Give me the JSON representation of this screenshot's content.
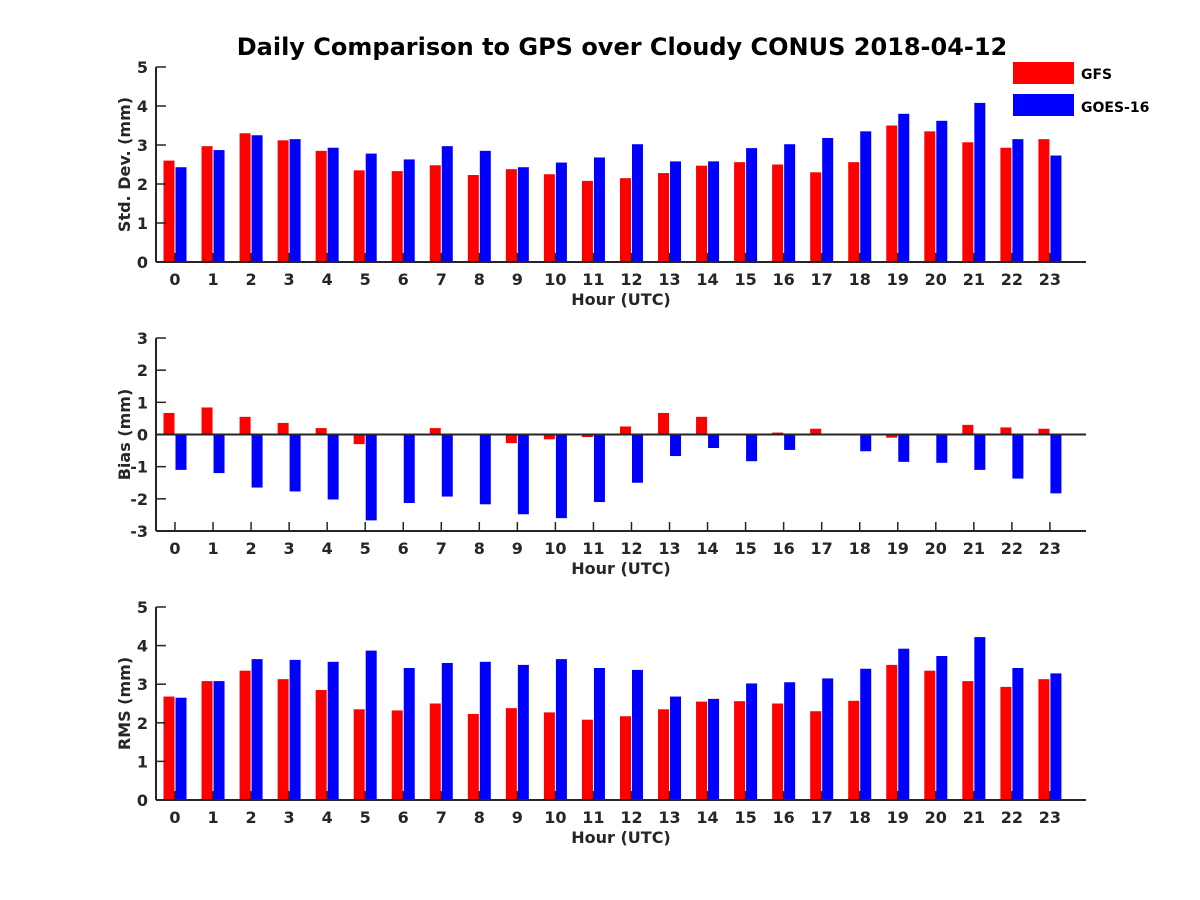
{
  "chart_data": {
    "title": "Daily Comparison to GPS over Cloudy CONUS 2018-04-12",
    "type": "bar",
    "categories": [
      "0",
      "1",
      "2",
      "3",
      "4",
      "5",
      "6",
      "7",
      "8",
      "9",
      "10",
      "11",
      "12",
      "13",
      "14",
      "15",
      "16",
      "17",
      "18",
      "19",
      "20",
      "21",
      "22",
      "23"
    ],
    "legend": {
      "placement": "top-right",
      "entries": [
        {
          "name": "GFS",
          "color": "#ff0000"
        },
        {
          "name": "GOES-16",
          "color": "#0000ff"
        }
      ]
    },
    "panels": [
      {
        "ylabel": "Std. Dev. (mm)",
        "xlabel": "Hour (UTC)",
        "ylim": [
          0,
          5
        ],
        "yticks": [
          "0",
          "1",
          "2",
          "3",
          "4",
          "5"
        ],
        "series": [
          {
            "name": "GFS",
            "values": [
              2.6,
              2.97,
              3.3,
              3.12,
              2.85,
              2.35,
              2.33,
              2.48,
              2.23,
              2.38,
              2.25,
              2.08,
              2.15,
              2.28,
              2.47,
              2.56,
              2.5,
              2.3,
              2.56,
              3.5,
              3.35,
              3.07,
              2.93,
              3.15
            ]
          },
          {
            "name": "GOES-16",
            "values": [
              2.43,
              2.87,
              3.25,
              3.15,
              2.93,
              2.78,
              2.63,
              2.97,
              2.85,
              2.43,
              2.55,
              2.68,
              3.02,
              2.58,
              2.58,
              2.92,
              3.02,
              3.18,
              3.35,
              3.8,
              3.62,
              4.08,
              3.15,
              2.73
            ]
          }
        ]
      },
      {
        "ylabel": "Bias (mm)",
        "xlabel": "Hour (UTC)",
        "ylim": [
          -3,
          3
        ],
        "yticks": [
          "-3",
          "-2",
          "-1",
          "0",
          "1",
          "2",
          "3"
        ],
        "series": [
          {
            "name": "GFS",
            "values": [
              0.67,
              0.84,
              0.55,
              0.36,
              0.2,
              -0.3,
              -0.03,
              0.2,
              0.0,
              -0.27,
              -0.15,
              -0.08,
              0.25,
              0.67,
              0.55,
              0.02,
              0.06,
              0.18,
              0.0,
              -0.1,
              -0.03,
              0.3,
              0.22,
              0.18
            ]
          },
          {
            "name": "GOES-16",
            "values": [
              -1.1,
              -1.2,
              -1.65,
              -1.77,
              -2.02,
              -2.67,
              -2.13,
              -1.93,
              -2.17,
              -2.48,
              -2.6,
              -2.1,
              -1.5,
              -0.67,
              -0.42,
              -0.83,
              -0.48,
              0.0,
              -0.52,
              -0.85,
              -0.88,
              -1.1,
              -1.37,
              -1.83
            ]
          }
        ]
      },
      {
        "ylabel": "RMS (mm)",
        "xlabel": "Hour (UTC)",
        "ylim": [
          0,
          5
        ],
        "yticks": [
          "0",
          "1",
          "2",
          "3",
          "4",
          "5"
        ],
        "series": [
          {
            "name": "GFS",
            "values": [
              2.68,
              3.08,
              3.35,
              3.13,
              2.85,
              2.35,
              2.32,
              2.5,
              2.23,
              2.38,
              2.27,
              2.08,
              2.17,
              2.35,
              2.55,
              2.56,
              2.5,
              2.3,
              2.57,
              3.5,
              3.35,
              3.08,
              2.93,
              3.13
            ]
          },
          {
            "name": "GOES-16",
            "values": [
              2.65,
              3.08,
              3.65,
              3.63,
              3.58,
              3.87,
              3.42,
              3.55,
              3.58,
              3.5,
              3.65,
              3.42,
              3.37,
              2.68,
              2.62,
              3.02,
              3.05,
              3.15,
              3.4,
              3.92,
              3.73,
              4.22,
              3.42,
              3.28
            ]
          }
        ]
      }
    ]
  }
}
